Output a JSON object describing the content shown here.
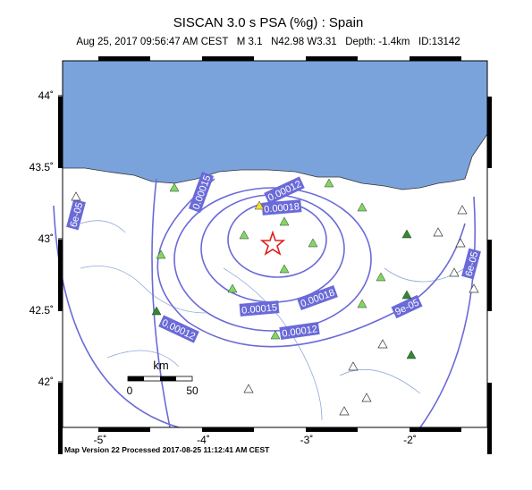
{
  "header": {
    "title": "SISCAN 3.0 s PSA (%g) : Spain",
    "subtitle": "Aug 25, 2017 09:56:47 AM CEST   M 3.1   N42.98 W3.31   Depth: -1.4km   ID:13142"
  },
  "axes": {
    "lat_ticks": [
      {
        "value": 44,
        "label": "44˚"
      },
      {
        "value": 43.5,
        "label": "43.5˚"
      },
      {
        "value": 43,
        "label": "43˚"
      },
      {
        "value": 42.5,
        "label": "42.5˚"
      },
      {
        "value": 42,
        "label": "42˚"
      }
    ],
    "lon_ticks": [
      {
        "value": -5,
        "label": "-5˚"
      },
      {
        "value": -4,
        "label": "-4˚"
      },
      {
        "value": -3,
        "label": "-3˚"
      },
      {
        "value": -2,
        "label": "-2˚"
      }
    ]
  },
  "contour_labels": [
    "6e-05",
    "0.00012",
    "0.00018",
    "0.00012",
    "0.00015",
    "0.00018",
    "9e-05",
    "0.00015",
    "0.00012",
    "6e-05"
  ],
  "scale_bar": {
    "unit": "km",
    "start": "0",
    "end": "50"
  },
  "footer": "Map Version 22 Processed 2017-08-25 11:12:41 AM CEST"
}
